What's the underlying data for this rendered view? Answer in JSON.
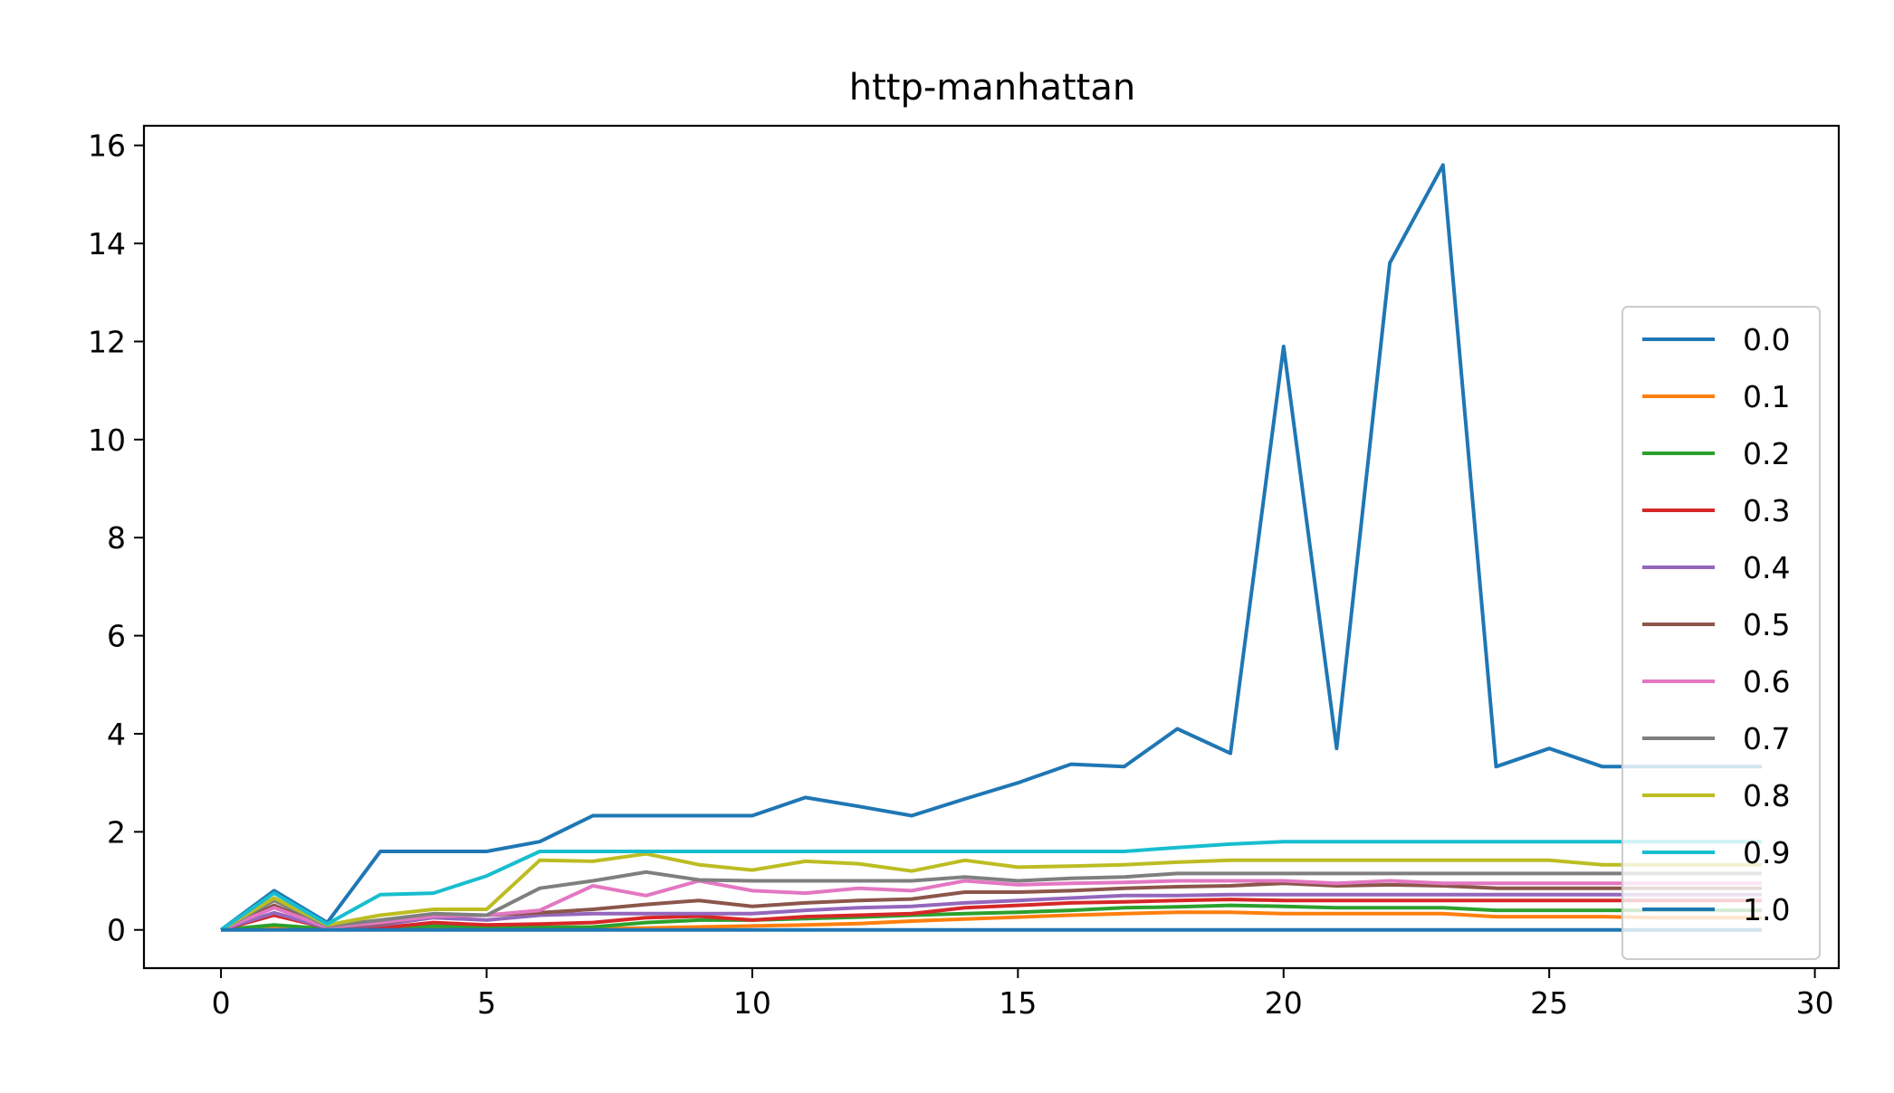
{
  "chart_data": {
    "type": "line",
    "title": "http-manhattan",
    "xlabel": "",
    "ylabel": "",
    "xlim": [
      -1.45,
      30.45
    ],
    "ylim": [
      -0.78,
      16.4
    ],
    "xticks": [
      0,
      5,
      10,
      15,
      20,
      25,
      30
    ],
    "yticks": [
      0,
      2,
      4,
      6,
      8,
      10,
      12,
      14,
      16
    ],
    "grid": false,
    "legend_position": "right",
    "x": [
      0,
      1,
      2,
      3,
      4,
      5,
      6,
      7,
      8,
      9,
      10,
      11,
      12,
      13,
      14,
      15,
      16,
      17,
      18,
      19,
      20,
      21,
      22,
      23,
      24,
      25,
      26,
      27,
      28,
      29
    ],
    "series": [
      {
        "name": "0.0",
        "color": "#1f77b4",
        "values": [
          0,
          0.8,
          0.15,
          1.6,
          1.6,
          1.6,
          1.8,
          2.33,
          2.33,
          2.33,
          2.33,
          2.7,
          2.52,
          2.33,
          2.67,
          3.0,
          3.38,
          3.33,
          4.1,
          3.6,
          11.9,
          3.7,
          13.6,
          15.6,
          3.33,
          3.7,
          3.33,
          3.33,
          3.33,
          3.33
        ]
      },
      {
        "name": "0.1",
        "color": "#ff7f0e",
        "values": [
          0,
          0.07,
          0.02,
          0.02,
          0.02,
          0.02,
          0.02,
          0.02,
          0.04,
          0.06,
          0.08,
          0.1,
          0.13,
          0.18,
          0.22,
          0.26,
          0.3,
          0.33,
          0.36,
          0.36,
          0.33,
          0.33,
          0.33,
          0.33,
          0.27,
          0.27,
          0.27,
          0.25,
          0.25,
          0.25
        ]
      },
      {
        "name": "0.2",
        "color": "#2ca02c",
        "values": [
          0,
          0.1,
          0.02,
          0.02,
          0.08,
          0.05,
          0.05,
          0.06,
          0.15,
          0.2,
          0.2,
          0.23,
          0.26,
          0.3,
          0.33,
          0.36,
          0.4,
          0.45,
          0.47,
          0.5,
          0.48,
          0.45,
          0.45,
          0.45,
          0.4,
          0.4,
          0.4,
          0.4,
          0.4,
          0.4
        ]
      },
      {
        "name": "0.3",
        "color": "#d62728",
        "values": [
          0,
          0.3,
          0.04,
          0.04,
          0.15,
          0.1,
          0.12,
          0.15,
          0.25,
          0.28,
          0.2,
          0.27,
          0.3,
          0.33,
          0.45,
          0.5,
          0.55,
          0.57,
          0.6,
          0.62,
          0.6,
          0.6,
          0.6,
          0.6,
          0.6,
          0.6,
          0.6,
          0.6,
          0.6,
          0.6
        ]
      },
      {
        "name": "0.4",
        "color": "#9467bd",
        "values": [
          0,
          0.35,
          0.04,
          0.1,
          0.25,
          0.2,
          0.3,
          0.33,
          0.33,
          0.33,
          0.33,
          0.4,
          0.45,
          0.48,
          0.55,
          0.6,
          0.65,
          0.7,
          0.7,
          0.72,
          0.72,
          0.72,
          0.72,
          0.72,
          0.72,
          0.72,
          0.72,
          0.72,
          0.72,
          0.72
        ]
      },
      {
        "name": "0.5",
        "color": "#8c564b",
        "values": [
          0,
          0.5,
          0.05,
          0.12,
          0.3,
          0.3,
          0.35,
          0.42,
          0.52,
          0.6,
          0.48,
          0.55,
          0.6,
          0.63,
          0.77,
          0.77,
          0.8,
          0.85,
          0.88,
          0.9,
          0.95,
          0.9,
          0.92,
          0.9,
          0.85,
          0.85,
          0.85,
          0.85,
          0.85,
          0.85
        ]
      },
      {
        "name": "0.6",
        "color": "#e377c2",
        "values": [
          0,
          0.45,
          0.05,
          0.15,
          0.28,
          0.3,
          0.4,
          0.9,
          0.7,
          1.0,
          0.8,
          0.75,
          0.85,
          0.8,
          1.0,
          0.92,
          0.95,
          0.97,
          1.0,
          1.0,
          1.0,
          0.95,
          1.0,
          0.95,
          0.95,
          0.95,
          0.95,
          0.95,
          0.95,
          0.95
        ]
      },
      {
        "name": "0.7",
        "color": "#7f7f7f",
        "values": [
          0,
          0.6,
          0.08,
          0.2,
          0.33,
          0.3,
          0.85,
          1.0,
          1.18,
          1.02,
          1.0,
          1.0,
          1.0,
          1.0,
          1.08,
          1.0,
          1.05,
          1.08,
          1.15,
          1.15,
          1.15,
          1.15,
          1.15,
          1.15,
          1.15,
          1.15,
          1.15,
          1.15,
          1.15,
          1.15
        ]
      },
      {
        "name": "0.8",
        "color": "#bcbd22",
        "values": [
          0,
          0.65,
          0.1,
          0.3,
          0.42,
          0.42,
          1.42,
          1.4,
          1.55,
          1.33,
          1.22,
          1.4,
          1.35,
          1.2,
          1.42,
          1.28,
          1.3,
          1.33,
          1.38,
          1.42,
          1.42,
          1.42,
          1.42,
          1.42,
          1.42,
          1.42,
          1.33,
          1.33,
          1.33,
          1.33
        ]
      },
      {
        "name": "0.9",
        "color": "#17becf",
        "values": [
          0,
          0.75,
          0.12,
          0.72,
          0.75,
          1.1,
          1.6,
          1.6,
          1.6,
          1.6,
          1.6,
          1.6,
          1.6,
          1.6,
          1.6,
          1.6,
          1.6,
          1.6,
          1.68,
          1.75,
          1.8,
          1.8,
          1.8,
          1.8,
          1.8,
          1.8,
          1.8,
          1.8,
          1.8,
          1.8
        ]
      },
      {
        "name": "1.0",
        "color": "#1f77b4",
        "values": [
          0,
          0,
          0,
          0,
          0,
          0,
          0,
          0,
          0,
          0,
          0,
          0,
          0,
          0,
          0,
          0,
          0,
          0,
          0,
          0,
          0,
          0,
          0,
          0,
          0,
          0,
          0,
          0,
          0,
          0
        ]
      }
    ]
  }
}
